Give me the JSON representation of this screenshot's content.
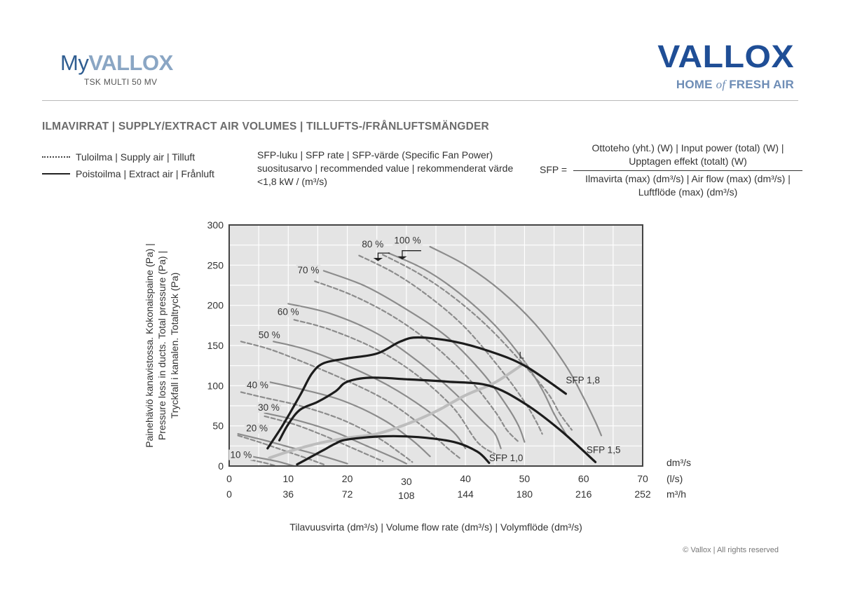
{
  "header": {
    "logo_my": "My",
    "logo_vallox": "VALLOX",
    "model": "TSK MULTI 50 MV",
    "brand_name": "VALLOX",
    "brand_tag_1": "HOME",
    "brand_tag_of": "of",
    "brand_tag_2": "FRESH AIR"
  },
  "section_title": "ILMAVIRRAT | SUPPLY/EXTRACT AIR VOLUMES | TILLUFTS-/FRÅNLUFTSMÄNGDER",
  "legend": {
    "supply": "Tuloilma | Supply air | Tilluft",
    "extract": "Poistoilma | Extract air | Frånluft"
  },
  "sfp_note": "SFP-luku | SFP rate | SFP-värde (Specific Fan Power) suositusarvo | recommended value | rekommenderat värde <1,8 kW / (m³/s)",
  "formula": {
    "lhs": "SFP =",
    "numerator_1": "Ottoteho (yht.) (W) | Input power (total) (W) |",
    "numerator_2": "Upptagen effekt (totalt) (W)",
    "denominator_1": "Ilmavirta (max) (dm³/s) | Air flow (max) (dm³/s) |",
    "denominator_2": "Luftflöde (max) (dm³/s)"
  },
  "copyright": "© Vallox | All rights reserved",
  "colors": {
    "plot_bg": "#e4e4e4",
    "grid": "#ffffff",
    "fan_curve": "#8c8c8c",
    "sfp_curve": "#1c1c1c",
    "system_curve": "#bdbdbd",
    "logo_dark": "#1f4e96",
    "logo_light": "#6e8db6"
  },
  "chart_data": {
    "type": "line",
    "ylabel": "Painehäviö kanavistossa. Kokonaispaine (Pa) | Pressure loss in ducts. Total pressure (Pa) | Tryckfall i kanalen. Totaltryck (Pa)",
    "ylabel_lines": [
      "Painehäviö kanavistossa. Kokonaispaine (Pa) |",
      "Pressure loss in ducts. Total pressure (Pa) |",
      "Tryckfall i kanalen. Totaltryck (Pa)"
    ],
    "xlabel": "Tilavuusvirta (dm³/s) | Volume flow rate (dm³/s) | Volymflöde (dm³/s)",
    "xlim": [
      0,
      70
    ],
    "ylim": [
      0,
      300
    ],
    "y_ticks": [
      0,
      50,
      100,
      150,
      200,
      250,
      300
    ],
    "x_ticks_dm3s": [
      0,
      10,
      20,
      30,
      40,
      50,
      60,
      70
    ],
    "x_ticks_m3h": [
      0,
      36,
      72,
      108,
      144,
      180,
      216,
      252
    ],
    "x_unit_dm3s": "dm³/s",
    "x_unit_ls": "(l/s)",
    "x_unit_m3h": "m³/h",
    "grid": true,
    "fan_speed_labels": [
      {
        "text": "10 %",
        "x": 2,
        "y": 10
      },
      {
        "text": "20 %",
        "x": 4.7,
        "y": 43
      },
      {
        "text": "30 %",
        "x": 6.7,
        "y": 69
      },
      {
        "text": "40 %",
        "x": 4.8,
        "y": 97
      },
      {
        "text": "50 %",
        "x": 6.8,
        "y": 159
      },
      {
        "text": "60 %",
        "x": 10,
        "y": 188
      },
      {
        "text": "70 %",
        "x": 13.4,
        "y": 240
      },
      {
        "text": "80 %",
        "x": 24.3,
        "y": 272
      },
      {
        "text": "100 %",
        "x": 30.2,
        "y": 277
      }
    ],
    "series": [
      {
        "name": "10 %",
        "kind": "supply",
        "points": [
          [
            1.5,
            12
          ],
          [
            3.5,
            8
          ],
          [
            6,
            4
          ],
          [
            8,
            0
          ]
        ]
      },
      {
        "name": "10 %",
        "kind": "extract",
        "points": [
          [
            1.5,
            15
          ],
          [
            4.5,
            11
          ],
          [
            8,
            6
          ],
          [
            11,
            0
          ]
        ]
      },
      {
        "name": "20 %",
        "kind": "supply",
        "points": [
          [
            1.5,
            38
          ],
          [
            5,
            30
          ],
          [
            9,
            20
          ],
          [
            13,
            10
          ],
          [
            16,
            2
          ]
        ]
      },
      {
        "name": "20 %",
        "kind": "extract",
        "points": [
          [
            1.5,
            40
          ],
          [
            6,
            32
          ],
          [
            11,
            22
          ],
          [
            16,
            12
          ],
          [
            20,
            3
          ]
        ]
      },
      {
        "name": "30 %",
        "kind": "supply",
        "points": [
          [
            6,
            62
          ],
          [
            11,
            52
          ],
          [
            16,
            38
          ],
          [
            21,
            22
          ],
          [
            26,
            6
          ]
        ]
      },
      {
        "name": "30 %",
        "kind": "extract",
        "points": [
          [
            6,
            66
          ],
          [
            12,
            56
          ],
          [
            18,
            42
          ],
          [
            23,
            26
          ],
          [
            28,
            10
          ],
          [
            30,
            3
          ]
        ]
      },
      {
        "name": "40 %",
        "kind": "supply",
        "points": [
          [
            2,
            92
          ],
          [
            6,
            85
          ],
          [
            12,
            75
          ],
          [
            19,
            58
          ],
          [
            25,
            36
          ],
          [
            29,
            16
          ],
          [
            31,
            5
          ]
        ]
      },
      {
        "name": "40 %",
        "kind": "extract",
        "points": [
          [
            6.5,
            105
          ],
          [
            12,
            96
          ],
          [
            19,
            82
          ],
          [
            26,
            58
          ],
          [
            31,
            32
          ],
          [
            34,
            12
          ]
        ]
      },
      {
        "name": "50 %",
        "kind": "supply",
        "points": [
          [
            2,
            155
          ],
          [
            7,
            145
          ],
          [
            13,
            128
          ],
          [
            20,
            106
          ],
          [
            27,
            80
          ],
          [
            33,
            48
          ],
          [
            37,
            22
          ],
          [
            39,
            10
          ]
        ]
      },
      {
        "name": "50 %",
        "kind": "extract",
        "points": [
          [
            7.5,
            155
          ],
          [
            13,
            145
          ],
          [
            20,
            125
          ],
          [
            27,
            100
          ],
          [
            33,
            72
          ],
          [
            38,
            42
          ],
          [
            40,
            22
          ]
        ]
      },
      {
        "name": "60 %",
        "kind": "supply",
        "points": [
          [
            11,
            182
          ],
          [
            17,
            170
          ],
          [
            25,
            145
          ],
          [
            32,
            112
          ],
          [
            38,
            72
          ],
          [
            42,
            30
          ],
          [
            45,
            15
          ]
        ]
      },
      {
        "name": "60 %",
        "kind": "extract",
        "points": [
          [
            10,
            202
          ],
          [
            17,
            190
          ],
          [
            25,
            165
          ],
          [
            32,
            130
          ],
          [
            38,
            92
          ],
          [
            43,
            55
          ],
          [
            45,
            40
          ],
          [
            46,
            22
          ]
        ]
      },
      {
        "name": "70 %",
        "kind": "supply",
        "points": [
          [
            14.5,
            230
          ],
          [
            21,
            212
          ],
          [
            28,
            185
          ],
          [
            35,
            148
          ],
          [
            41,
            105
          ],
          [
            45,
            68
          ],
          [
            47,
            45
          ],
          [
            49,
            30
          ]
        ]
      },
      {
        "name": "70 %",
        "kind": "extract",
        "points": [
          [
            16,
            243
          ],
          [
            23,
            224
          ],
          [
            30,
            195
          ],
          [
            37,
            160
          ],
          [
            43,
            115
          ],
          [
            47,
            75
          ],
          [
            49,
            50
          ],
          [
            50,
            30
          ]
        ]
      },
      {
        "name": "80 %",
        "kind": "supply",
        "points": [
          [
            22,
            262
          ],
          [
            28,
            240
          ],
          [
            34,
            210
          ],
          [
            40,
            172
          ],
          [
            46,
            120
          ],
          [
            50,
            80
          ],
          [
            52,
            55
          ],
          [
            53,
            40
          ]
        ]
      },
      {
        "name": "80 %",
        "kind": "extract",
        "points": [
          [
            27,
            265
          ],
          [
            33,
            245
          ],
          [
            39,
            215
          ],
          [
            45,
            175
          ],
          [
            50,
            130
          ],
          [
            53,
            95
          ],
          [
            55,
            65
          ],
          [
            57,
            40
          ]
        ]
      },
      {
        "name": "100 %",
        "kind": "supply",
        "points": [
          [
            26,
            263
          ],
          [
            32,
            240
          ],
          [
            38,
            210
          ],
          [
            44,
            172
          ],
          [
            50,
            125
          ],
          [
            54,
            90
          ],
          [
            56,
            65
          ],
          [
            58,
            45
          ]
        ]
      },
      {
        "name": "100 %",
        "kind": "extract",
        "points": [
          [
            34,
            273
          ],
          [
            40,
            250
          ],
          [
            46,
            218
          ],
          [
            52,
            175
          ],
          [
            57,
            125
          ],
          [
            60,
            85
          ],
          [
            62,
            55
          ],
          [
            63,
            38
          ]
        ]
      },
      {
        "name": "SFP 1,8",
        "kind": "sfp",
        "points": [
          [
            6.5,
            22
          ],
          [
            9,
            50
          ],
          [
            12,
            88
          ],
          [
            14,
            115
          ],
          [
            16,
            128
          ],
          [
            20,
            134
          ],
          [
            25,
            140
          ],
          [
            29,
            155
          ],
          [
            32,
            160
          ],
          [
            38,
            155
          ],
          [
            44,
            143
          ],
          [
            50,
            125
          ],
          [
            57,
            90
          ]
        ]
      },
      {
        "name": "SFP 1,5",
        "kind": "sfp",
        "points": [
          [
            8.5,
            32
          ],
          [
            10,
            52
          ],
          [
            12,
            70
          ],
          [
            15,
            80
          ],
          [
            18,
            93
          ],
          [
            20,
            105
          ],
          [
            24,
            110
          ],
          [
            30,
            108
          ],
          [
            37,
            105
          ],
          [
            44,
            100
          ],
          [
            50,
            78
          ],
          [
            56,
            45
          ],
          [
            62,
            5
          ]
        ]
      },
      {
        "name": "SFP 1,0",
        "kind": "sfp",
        "points": [
          [
            11.5,
            2
          ],
          [
            14,
            12
          ],
          [
            16,
            20
          ],
          [
            18,
            28
          ],
          [
            20,
            33
          ],
          [
            26,
            37
          ],
          [
            32,
            36
          ],
          [
            38,
            30
          ],
          [
            42,
            18
          ],
          [
            44,
            4
          ]
        ]
      },
      {
        "name": "L",
        "kind": "system",
        "points": [
          [
            6.8,
            10
          ],
          [
            10,
            18
          ],
          [
            15,
            28
          ],
          [
            20,
            35
          ],
          [
            25,
            40
          ],
          [
            30,
            52
          ],
          [
            35,
            68
          ],
          [
            40,
            88
          ],
          [
            45,
            104
          ],
          [
            50,
            128
          ]
        ]
      }
    ],
    "curve_labels": [
      {
        "text": "SFP 1,8",
        "x": 57,
        "y": 103
      },
      {
        "text": "SFP 1,5",
        "x": 60.5,
        "y": 16
      },
      {
        "text": "SFP 1,0",
        "x": 44,
        "y": 6
      },
      {
        "text": "L",
        "x": 49.5,
        "y": 134
      }
    ]
  }
}
